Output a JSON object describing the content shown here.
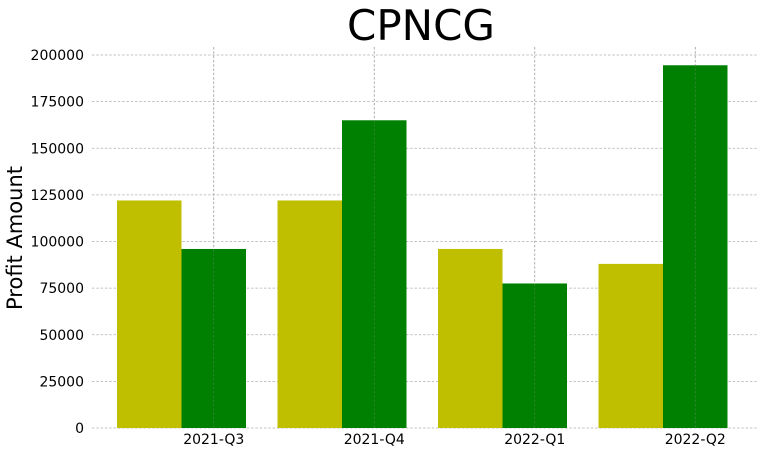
{
  "chart_data": {
    "type": "bar",
    "title": "CPNCG",
    "xlabel": "",
    "ylabel": "Profit Amount",
    "categories": [
      "2021-Q3",
      "2021-Q4",
      "2022-Q1",
      "2022-Q2"
    ],
    "series": [
      {
        "color": "#bfbf00",
        "values": [
          122000,
          122000,
          96000,
          88000
        ]
      },
      {
        "color": "#008000",
        "values": [
          96000,
          165000,
          77500,
          194500
        ]
      }
    ],
    "ylim": [
      0,
      205000
    ],
    "yticks": [
      0,
      25000,
      50000,
      75000,
      100000,
      125000,
      150000,
      175000,
      200000
    ],
    "ytick_labels": [
      "0",
      "25000",
      "50000",
      "75000",
      "100000",
      "125000",
      "150000",
      "175000",
      "200000"
    ],
    "grid": true,
    "legend": "none"
  }
}
